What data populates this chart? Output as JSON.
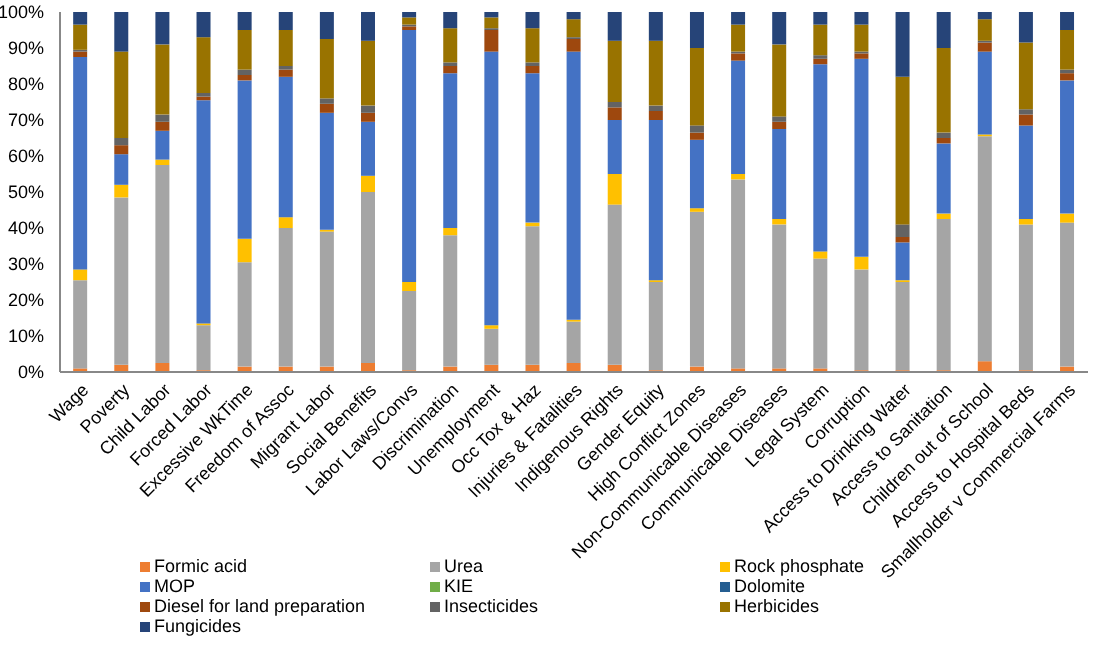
{
  "chart_data": {
    "type": "bar",
    "stacked": true,
    "categories": [
      "Wage",
      "Poverty",
      "Child Labor",
      "Forced Labor",
      "Excessive WkTime",
      "Freedom of Assoc",
      "Migrant Labor",
      "Social Benefits",
      "Labor Laws/Convs",
      "Discrimination",
      "Unemployment",
      "Occ Tox & Haz",
      "Injuries & Fatalities",
      "Indigenous Rights",
      "Gender Equity",
      "High Conflict Zones",
      "Non-Communicable Diseases",
      "Communicable Diseases",
      "Legal System",
      "Corruption",
      "Access to Drinking Water",
      "Access to Sanitation",
      "Children out of School",
      "Access to Hospital Beds",
      "Smallholder v Commercial Farms"
    ],
    "series": [
      {
        "name": "Formic acid",
        "color": "#ed7d31",
        "values": [
          1,
          2,
          2.5,
          0.5,
          1.5,
          1.5,
          1.5,
          2.5,
          0.5,
          1.5,
          2,
          2,
          2.5,
          2,
          0.5,
          1.5,
          1,
          1,
          1,
          0.5,
          0.5,
          0.5,
          3,
          0.5,
          1.5
        ]
      },
      {
        "name": "Urea",
        "color": "#a5a5a5",
        "values": [
          24.5,
          46.5,
          55,
          12.5,
          29,
          38.5,
          37.5,
          47.5,
          22,
          36.5,
          10,
          38.5,
          11.5,
          44.5,
          24.5,
          43,
          52.5,
          40,
          30.5,
          28,
          24.5,
          42,
          62.5,
          40.5,
          40
        ]
      },
      {
        "name": "Rock phosphate",
        "color": "#ffc000",
        "values": [
          3,
          3.5,
          1.5,
          0.5,
          6.5,
          3,
          0.5,
          4.5,
          2.5,
          2,
          1,
          1,
          0.5,
          8.5,
          0.5,
          1,
          1.5,
          1.5,
          2,
          3.5,
          0.5,
          1.5,
          0.5,
          1.5,
          2.5
        ]
      },
      {
        "name": "MOP",
        "color": "#4472c4",
        "values": [
          59,
          8.5,
          8,
          62,
          44,
          39,
          32.5,
          15,
          70,
          43,
          76,
          41.5,
          74.5,
          15,
          44.5,
          19,
          31.5,
          25,
          52,
          55,
          10.5,
          19.5,
          23,
          26,
          37
        ]
      },
      {
        "name": "KIE",
        "color": "#70ad47",
        "values": [
          0,
          0,
          0,
          0,
          0,
          0,
          0,
          0,
          0,
          0,
          0,
          0,
          0,
          0,
          0,
          0,
          0,
          0,
          0,
          0,
          0,
          0,
          0,
          0,
          0
        ]
      },
      {
        "name": "Dolomite",
        "color": "#255e91",
        "values": [
          0,
          0,
          0,
          0,
          0,
          0,
          0,
          0,
          0,
          0,
          0,
          0,
          0,
          0,
          0,
          0,
          0,
          0,
          0,
          0,
          0,
          0,
          0,
          0,
          0
        ]
      },
      {
        "name": "Diesel for land preparation",
        "color": "#9e480e",
        "values": [
          1.5,
          2.5,
          2.5,
          1,
          1.5,
          2,
          2.5,
          2.5,
          1,
          2,
          6,
          2,
          3.5,
          3.5,
          2.5,
          2,
          2,
          2,
          1.5,
          1.5,
          1.5,
          1.5,
          2.5,
          3,
          2
        ]
      },
      {
        "name": "Insecticides",
        "color": "#636363",
        "values": [
          0.5,
          2,
          2,
          1,
          1.5,
          1,
          1.5,
          2,
          0.5,
          1,
          0.5,
          1,
          0.5,
          1.5,
          1.5,
          2,
          0.5,
          1.5,
          1,
          0.5,
          3.5,
          1.5,
          0.5,
          1.5,
          1
        ]
      },
      {
        "name": "Herbicides",
        "color": "#997300",
        "values": [
          7,
          24,
          19.5,
          15.5,
          11,
          10,
          16.5,
          18,
          2,
          9.5,
          3,
          9.5,
          5,
          17,
          18,
          21.5,
          7.5,
          20,
          8.5,
          7.5,
          41,
          23.5,
          6,
          18.5,
          11
        ]
      },
      {
        "name": "Fungicides",
        "color": "#264478",
        "values": [
          3.5,
          11,
          9,
          7,
          5,
          5,
          7.5,
          8,
          1.5,
          4.5,
          1.5,
          4.5,
          2,
          8,
          8,
          10,
          3.5,
          9,
          3.5,
          3.5,
          18,
          10,
          2,
          8.5,
          5
        ]
      }
    ],
    "ylim": [
      0,
      100
    ],
    "yticks": [
      {
        "value": 0,
        "label": "0%"
      },
      {
        "value": 10,
        "label": "10%"
      },
      {
        "value": 20,
        "label": "20%"
      },
      {
        "value": 30,
        "label": "30%"
      },
      {
        "value": 40,
        "label": "40%"
      },
      {
        "value": 50,
        "label": "50%"
      },
      {
        "value": 60,
        "label": "60%"
      },
      {
        "value": 70,
        "label": "70%"
      },
      {
        "value": 80,
        "label": "80%"
      },
      {
        "value": 90,
        "label": "90%"
      },
      {
        "value": 100,
        "label": "100%"
      }
    ],
    "grid": false,
    "legend": "bottom"
  }
}
